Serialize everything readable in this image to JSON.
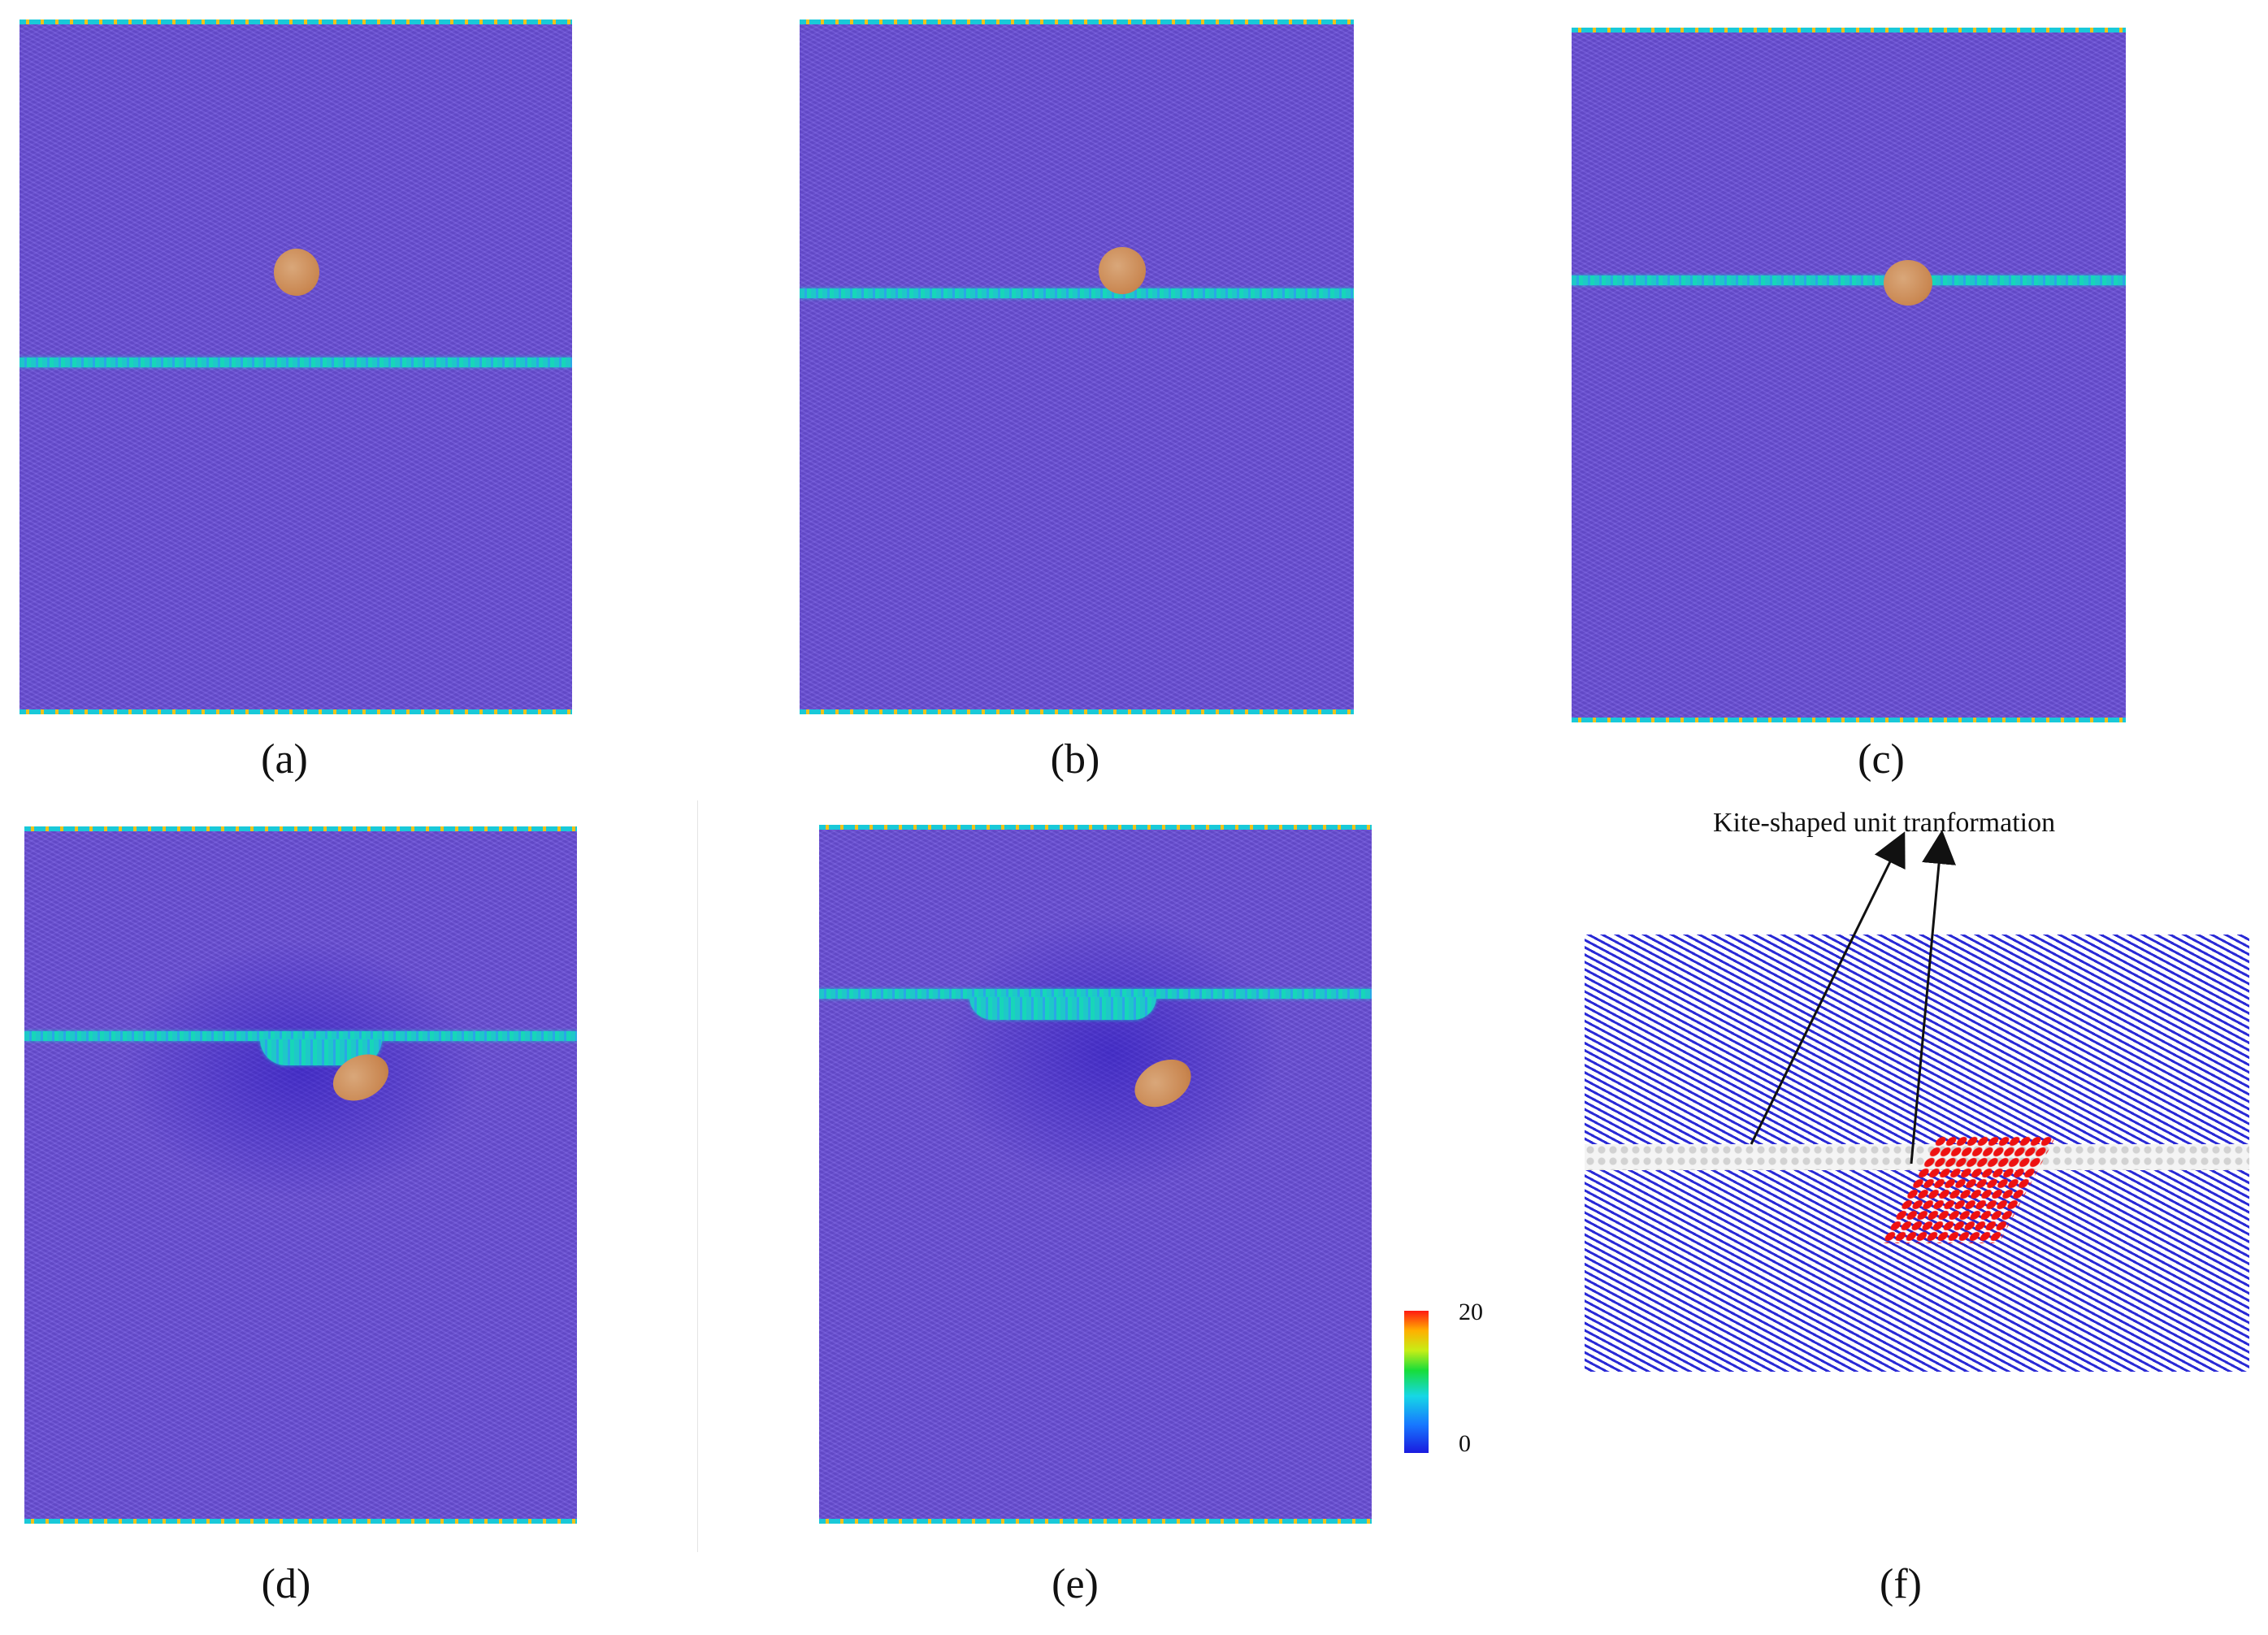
{
  "panels": [
    {
      "label": "(a)"
    },
    {
      "label": "(b)"
    },
    {
      "label": "(c)"
    },
    {
      "label": "(d)"
    },
    {
      "label": "(e)"
    },
    {
      "label": "(f)"
    }
  ],
  "colorbar": {
    "max_label": "20",
    "min_label": "0"
  },
  "annotation": {
    "text": "Kite-shaped unit tranformation"
  },
  "colors": {
    "matrix": "#6a4fd8",
    "boundary": "#1ec8c8",
    "particle": "#c98650",
    "highlight": "#ee1111"
  }
}
